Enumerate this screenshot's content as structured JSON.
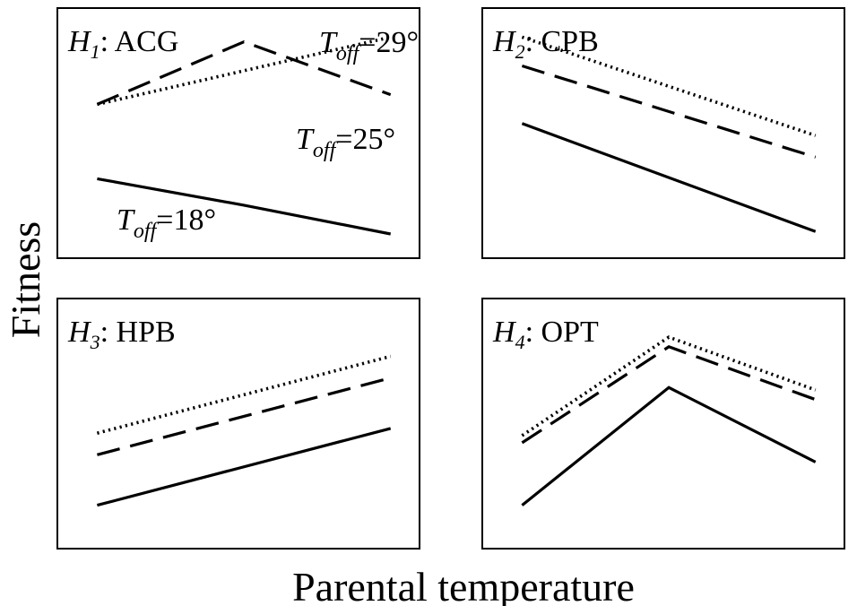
{
  "figure": {
    "ylabel": "Fitness",
    "xlabel": "Parental temperature"
  },
  "chart_data": [
    {
      "type": "line",
      "panel_id": "H1",
      "title": {
        "symbol": "H",
        "sub": "1",
        "name": "ACG"
      },
      "x": [
        0,
        0.5,
        1
      ],
      "series": [
        {
          "key": "t18",
          "style": "solid",
          "values": [
            0.31,
            0.2,
            0.08
          ]
        },
        {
          "key": "t25",
          "style": "dashed",
          "values": [
            0.62,
            0.88,
            0.66
          ]
        },
        {
          "key": "t29",
          "style": "dotted",
          "values": [
            0.62,
            0.76,
            0.9
          ]
        }
      ],
      "annotations": [
        {
          "series": "t29",
          "prefix": "T",
          "sub": "off",
          "value": "=29°"
        },
        {
          "series": "t25",
          "prefix": "T",
          "sub": "off",
          "value": "=25°"
        },
        {
          "series": "t18",
          "prefix": "T",
          "sub": "off",
          "value": "=18°"
        }
      ]
    },
    {
      "type": "line",
      "panel_id": "H2",
      "title": {
        "symbol": "H",
        "sub": "2",
        "name": "CPB"
      },
      "x": [
        0,
        1
      ],
      "series": [
        {
          "key": "t18",
          "style": "solid",
          "values": [
            0.54,
            0.09
          ]
        },
        {
          "key": "t25",
          "style": "dashed",
          "values": [
            0.78,
            0.4
          ]
        },
        {
          "key": "t29",
          "style": "dotted",
          "values": [
            0.9,
            0.49
          ]
        }
      ]
    },
    {
      "type": "line",
      "panel_id": "H3",
      "title": {
        "symbol": "H",
        "sub": "3",
        "name": "HPB"
      },
      "x": [
        0,
        1
      ],
      "series": [
        {
          "key": "t18",
          "style": "solid",
          "values": [
            0.16,
            0.48
          ]
        },
        {
          "key": "t25",
          "style": "dashed",
          "values": [
            0.37,
            0.69
          ]
        },
        {
          "key": "t29",
          "style": "dotted",
          "values": [
            0.46,
            0.78
          ]
        }
      ]
    },
    {
      "type": "line",
      "panel_id": "H4",
      "title": {
        "symbol": "H",
        "sub": "4",
        "name": "OPT"
      },
      "x": [
        0,
        0.5,
        1
      ],
      "series": [
        {
          "key": "t18",
          "style": "solid",
          "values": [
            0.16,
            0.65,
            0.34
          ]
        },
        {
          "key": "t25",
          "style": "dashed",
          "values": [
            0.42,
            0.82,
            0.6
          ]
        },
        {
          "key": "t29",
          "style": "dotted",
          "values": [
            0.45,
            0.86,
            0.64
          ]
        }
      ]
    }
  ]
}
